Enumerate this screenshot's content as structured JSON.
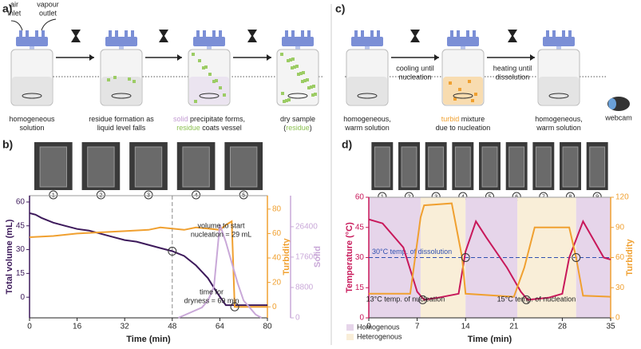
{
  "panel_a": {
    "label": "a)",
    "air_inlet": [
      "air",
      "inlet"
    ],
    "vapour_outlet": [
      "vapour",
      "outlet"
    ],
    "captions": [
      [
        [
          {
            "text": "homogeneous"
          }
        ],
        [
          {
            "text": "solution"
          }
        ]
      ],
      [
        [
          {
            "text": "residue formation as"
          }
        ],
        [
          {
            "text": "liquid level falls"
          }
        ]
      ],
      [
        [
          {
            "text": "solid",
            "color": "#c39bd3"
          },
          {
            "text": " precipitate forms,"
          }
        ],
        [
          {
            "text": "residue",
            "color": "#8cc152"
          },
          {
            "text": " coats vessel"
          }
        ]
      ],
      [
        [
          {
            "text": "dry sample"
          }
        ],
        [
          {
            "text": "("
          },
          {
            "text": "residue",
            "color": "#8cc152"
          },
          {
            "text": ")"
          }
        ]
      ]
    ]
  },
  "panel_c": {
    "label": "c)",
    "arrow_labels": [
      [
        "cooling until",
        "nucleation"
      ],
      [
        "heating until",
        "dissolution"
      ]
    ],
    "captions": [
      [
        [
          {
            "text": "homogeneous,"
          }
        ],
        [
          {
            "text": "warm solution"
          }
        ]
      ],
      [
        [
          {
            "text": "turbid",
            "color": "#f0a030"
          },
          {
            "text": " mixture"
          }
        ],
        [
          {
            "text": "due to nucleation"
          }
        ]
      ],
      [
        [
          {
            "text": "homogeneous,"
          }
        ],
        [
          {
            "text": "warm solution"
          }
        ]
      ]
    ],
    "webcam": "webcam"
  },
  "chart_data": [
    {
      "type": "line",
      "panel_label": "b)",
      "photo_labels": [
        "1",
        "2",
        "3",
        "4",
        "5"
      ],
      "x_label": "Time (min)",
      "xlim": [
        0,
        80
      ],
      "xticks": [
        0,
        16,
        32,
        48,
        64,
        80
      ],
      "y_label": "Total volume (mL)",
      "ylim": [
        -13,
        64
      ],
      "yticks": [
        0,
        15,
        30,
        45,
        60
      ],
      "y_color": "#3d1a5b",
      "y2_label": "Turbidity",
      "y2lim": [
        -9,
        91
      ],
      "y2ticks": [
        0,
        20,
        40,
        60,
        80
      ],
      "y2_color": "#f0a030",
      "y3_label": "Solid",
      "y3lim": [
        0,
        35400
      ],
      "y3ticks": [
        0,
        8800,
        17600,
        26400
      ],
      "y3_color": "#c9a8d8",
      "series": [
        {
          "color": "#3d1a5b",
          "x": [
            0,
            2,
            4,
            8,
            12,
            16,
            20,
            24,
            28,
            32,
            36,
            40,
            44,
            48,
            52,
            56,
            60,
            63,
            66,
            70,
            80
          ],
          "values": [
            53,
            52,
            50,
            47,
            45,
            43,
            42,
            40,
            38,
            36,
            35,
            33,
            31,
            29,
            26,
            20,
            12,
            3,
            -5,
            -5,
            -5
          ]
        },
        {
          "color": "#f0a030",
          "axis": "y2",
          "x": [
            0,
            8,
            16,
            24,
            32,
            40,
            44,
            48,
            52,
            56,
            60,
            64,
            66,
            68,
            69,
            72,
            80
          ],
          "values": [
            57,
            58,
            60,
            61,
            62,
            63,
            65,
            64,
            63,
            65,
            64,
            63,
            67,
            70,
            0,
            0,
            0
          ]
        },
        {
          "color": "#c9a8d8",
          "axis": "y3",
          "x": [
            50,
            54,
            58,
            60,
            62,
            64,
            66,
            68,
            70,
            72,
            74,
            76,
            78
          ],
          "values": [
            0,
            1500,
            3000,
            5000,
            9000,
            27000,
            22000,
            16000,
            10000,
            5000,
            3000,
            1000,
            0
          ]
        }
      ],
      "vline": 48,
      "markers": [
        {
          "x": 48,
          "y": 29
        },
        {
          "x": 69,
          "y": 0,
          "axis": "y2"
        }
      ],
      "annotations": [
        [
          "volume to start",
          "nucleation = 29 mL"
        ],
        [
          "time for",
          "dryness = 69 min"
        ]
      ]
    },
    {
      "type": "line",
      "panel_label": "d)",
      "photo_labels": [
        "1",
        "2",
        "3",
        "4",
        "5",
        "6",
        "7",
        "8",
        "9"
      ],
      "x_label": "Time (min)",
      "xlim": [
        0,
        35
      ],
      "xticks": [
        0,
        7,
        14,
        21,
        28,
        35
      ],
      "y_label": "Temperature (°C)",
      "ylim": [
        0,
        60
      ],
      "yticks": [
        0,
        15,
        30,
        45,
        60
      ],
      "y_color": "#c8185a",
      "y2_label": "Turbidity",
      "y2lim": [
        0,
        120
      ],
      "y2ticks": [
        0,
        30,
        60,
        90,
        120
      ],
      "y2_color": "#f0a030",
      "legend": [
        {
          "label": "Homogenous",
          "color": "#e6d5ea"
        },
        {
          "label": "Heterogenous",
          "color": "#f9eed8"
        }
      ],
      "regions": [
        {
          "start": 0,
          "end": 7.5,
          "legend": 0
        },
        {
          "start": 7.5,
          "end": 14,
          "legend": 1
        },
        {
          "start": 14,
          "end": 21.5,
          "legend": 0
        },
        {
          "start": 21.5,
          "end": 30,
          "legend": 1
        },
        {
          "start": 30,
          "end": 35,
          "legend": 0
        }
      ],
      "reference_line": {
        "value": 30,
        "label": "30°C temp. of dissolution",
        "color": "#3050b0"
      },
      "series": [
        {
          "color": "#c8185a",
          "x": [
            0,
            2,
            5,
            7,
            8,
            10,
            13,
            14,
            15.5,
            17,
            20,
            22,
            23,
            26,
            28,
            29,
            31,
            32,
            34,
            35
          ],
          "values": [
            49,
            47,
            35,
            13,
            9,
            10,
            12,
            33,
            48,
            40,
            25,
            13,
            9,
            10,
            12,
            30,
            48,
            42,
            30,
            29
          ]
        },
        {
          "color": "#f0a030",
          "axis": "y2",
          "x": [
            0,
            6,
            7.5,
            8,
            12,
            13.5,
            14,
            21,
            22.5,
            24,
            29,
            30,
            31,
            35
          ],
          "values": [
            24,
            24,
            100,
            112,
            114,
            60,
            24,
            21,
            50,
            90,
            90,
            60,
            22,
            21
          ]
        }
      ],
      "markers": [
        {
          "x": 7.8,
          "y": 9
        },
        {
          "x": 22.8,
          "y": 9
        },
        {
          "x": 14,
          "y": 30
        },
        {
          "x": 30,
          "y": 30
        }
      ],
      "annotations": [
        [
          "13°C temp. of nucleation"
        ],
        [
          "15°C temp. of nucleation"
        ]
      ]
    }
  ]
}
